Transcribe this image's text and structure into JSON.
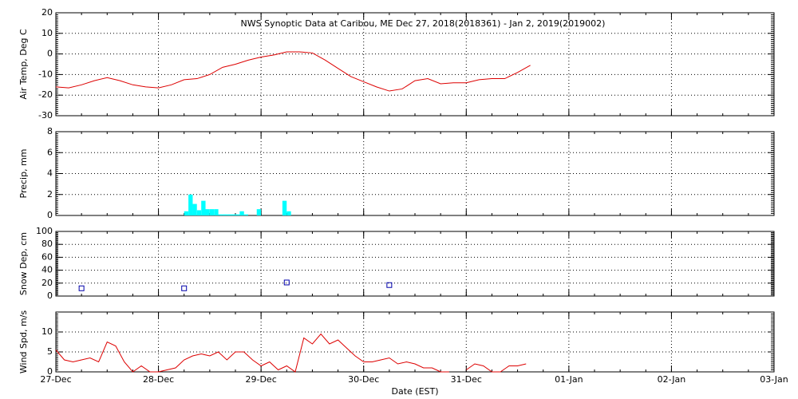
{
  "chart_data": [
    {
      "type": "line",
      "title": "NWS Synoptic Data at Caribou, ME   Dec 27, 2018(2018361) - Jan  2, 2019(2019002)",
      "y_label": "Air Temp, Deg C",
      "color": "#dd0000",
      "x": [
        0,
        0.125,
        0.25,
        0.375,
        0.5,
        0.625,
        0.75,
        0.875,
        1,
        1.125,
        1.25,
        1.375,
        1.5,
        1.625,
        1.75,
        1.875,
        2,
        2.125,
        2.25,
        2.375,
        2.5,
        2.625,
        2.75,
        2.875,
        3,
        3.125,
        3.25,
        3.375,
        3.5,
        3.625,
        3.75,
        3.875,
        4,
        4.125,
        4.25,
        4.375,
        4.5,
        4.625
      ],
      "values": [
        -16,
        -16.5,
        -15,
        -13,
        -11.5,
        -13,
        -15,
        -16,
        -16.5,
        -15,
        -12.5,
        -12,
        -10,
        -6.5,
        -5,
        -3,
        -1.5,
        -0.5,
        1,
        1,
        0.5,
        -3,
        -7,
        -11,
        -13.5,
        -16,
        -18,
        -17,
        -13,
        -12,
        -14.5,
        -14,
        -14,
        -12.5,
        -12,
        -12,
        -9,
        -5.5
      ],
      "xlim": [
        0,
        7
      ],
      "xticks": [
        0,
        1,
        2,
        3,
        4,
        5,
        6,
        7
      ],
      "ylim": [
        -30,
        20
      ],
      "yticks": [
        -30,
        -20,
        -10,
        0,
        10,
        20
      ],
      "grid": true
    },
    {
      "type": "bar",
      "y_label": "Precip, mm",
      "color": "#00ffff",
      "x": [
        1.25,
        1.292,
        1.333,
        1.375,
        1.417,
        1.458,
        1.5,
        1.542,
        1.583,
        1.625,
        1.667,
        1.708,
        1.75,
        1.792,
        1.833,
        1.958,
        2.208,
        2.25
      ],
      "values": [
        0.4,
        2.0,
        1.1,
        0.5,
        1.4,
        0.6,
        0.6,
        0.6,
        0.1,
        0.1,
        0.1,
        0.1,
        0.1,
        0.4,
        0.1,
        0.6,
        1.4,
        0.4
      ],
      "xlim": [
        0,
        7
      ],
      "xticks": [
        0,
        1,
        2,
        3,
        4,
        5,
        6,
        7
      ],
      "ylim": [
        0,
        8
      ],
      "yticks": [
        0,
        2,
        4,
        6,
        8
      ],
      "grid": true
    },
    {
      "type": "scatter",
      "y_label": "Snow Dep, cm",
      "color": "#0000aa",
      "x": [
        0.25,
        1.25,
        2.25,
        3.25
      ],
      "values": [
        12,
        12,
        21,
        17
      ],
      "xlim": [
        0,
        7
      ],
      "xticks": [
        0,
        1,
        2,
        3,
        4,
        5,
        6,
        7
      ],
      "ylim": [
        0,
        100
      ],
      "yticks": [
        0,
        20,
        40,
        60,
        80,
        100
      ],
      "grid": true
    },
    {
      "type": "line",
      "y_label": "Wind Spd, m/s",
      "x_label": "Date (EST)",
      "color": "#dd0000",
      "x": [
        0,
        0.083,
        0.167,
        0.25,
        0.333,
        0.417,
        0.5,
        0.583,
        0.667,
        0.75,
        0.833,
        0.917,
        1.0,
        1.083,
        1.167,
        1.25,
        1.333,
        1.417,
        1.5,
        1.583,
        1.667,
        1.75,
        1.833,
        1.917,
        2.0,
        2.083,
        2.167,
        2.25,
        2.333,
        2.417,
        2.5,
        2.583,
        2.667,
        2.75,
        2.833,
        2.917,
        3.0,
        3.083,
        3.167,
        3.25,
        3.333,
        3.417,
        3.5,
        3.583,
        3.667,
        3.75,
        3.833,
        3.917,
        4.0,
        4.083,
        4.167,
        4.25,
        4.333,
        4.417,
        4.5,
        4.583
      ],
      "values": [
        5.5,
        3,
        2.5,
        3,
        3.5,
        2.5,
        7.5,
        6.5,
        2.5,
        0,
        1.5,
        0,
        0,
        0.5,
        1,
        3,
        4,
        4.5,
        4,
        5,
        3,
        5,
        5,
        3,
        1.5,
        2.5,
        0.5,
        1.5,
        0,
        8.5,
        7,
        9.5,
        7,
        8,
        6,
        4,
        2.5,
        2.5,
        3,
        3.5,
        2,
        2.5,
        2,
        1,
        1,
        0,
        0,
        null,
        0.5,
        2,
        1.5,
        0,
        0,
        1.5,
        1.5,
        2
      ],
      "xlim": [
        0,
        7
      ],
      "xticks": [
        {
          "value": 0,
          "label": "27-Dec"
        },
        {
          "value": 1,
          "label": "28-Dec"
        },
        {
          "value": 2,
          "label": "29-Dec"
        },
        {
          "value": 3,
          "label": "30-Dec"
        },
        {
          "value": 4,
          "label": "31-Dec"
        },
        {
          "value": 5,
          "label": "01-Jan"
        },
        {
          "value": 6,
          "label": "02-Jan"
        },
        {
          "value": 7,
          "label": "03-Jan"
        }
      ],
      "ylim": [
        0,
        15
      ],
      "yticks": [
        0,
        5,
        10
      ],
      "grid": true
    }
  ]
}
